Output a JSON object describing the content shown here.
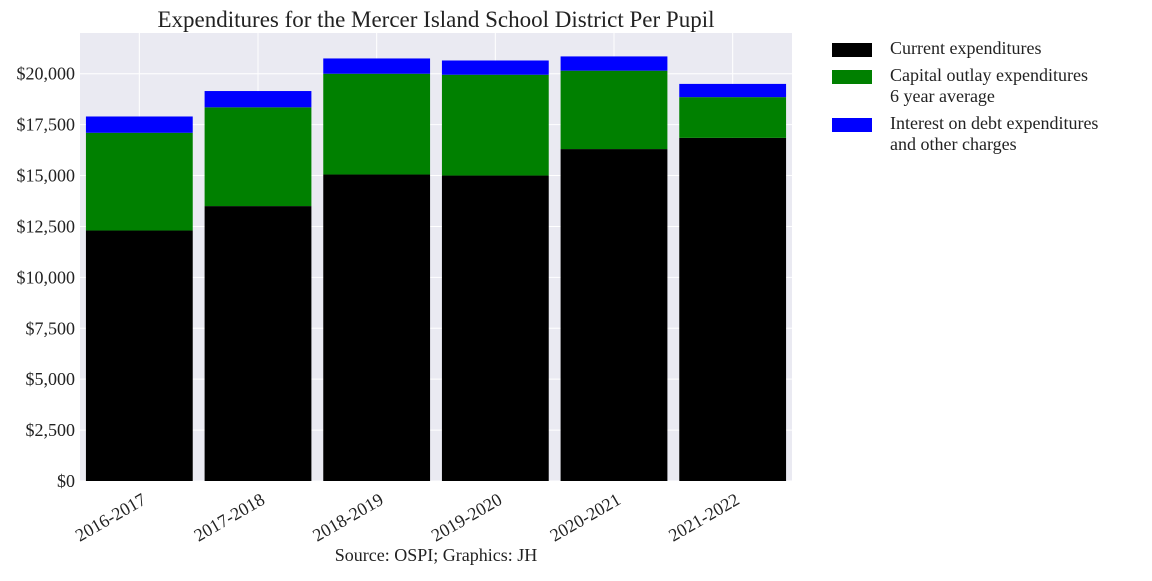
{
  "chart_data": {
    "type": "bar",
    "stacked": true,
    "title": "Expenditures for the Mercer Island School District Per Pupil",
    "xlabel": "Source: OSPI; Graphics: JH",
    "ylabel": "",
    "categories": [
      "2016-2017",
      "2017-2018",
      "2018-2019",
      "2019-2020",
      "2020-2021",
      "2021-2022"
    ],
    "ylim": [
      0,
      22000
    ],
    "yticks": [
      0,
      2500,
      5000,
      7500,
      10000,
      12500,
      15000,
      17500,
      20000
    ],
    "ytick_labels": [
      "$0",
      "$2,500",
      "$5,000",
      "$7,500",
      "$10,000",
      "$12,500",
      "$15,000",
      "$17,500",
      "$20,000"
    ],
    "grid": true,
    "legend_position": "outside right",
    "series": [
      {
        "name": "Current expenditures",
        "color": "#000000",
        "values": [
          12300,
          13500,
          15050,
          15000,
          16300,
          16850
        ]
      },
      {
        "name": "Capital outlay expenditures\n6 year average",
        "color": "#008000",
        "values": [
          4800,
          4850,
          4950,
          4950,
          3850,
          2000
        ]
      },
      {
        "name": "Interest on debt expenditures\nand other charges",
        "color": "#0000ff",
        "values": [
          800,
          800,
          750,
          700,
          700,
          650
        ]
      }
    ]
  }
}
